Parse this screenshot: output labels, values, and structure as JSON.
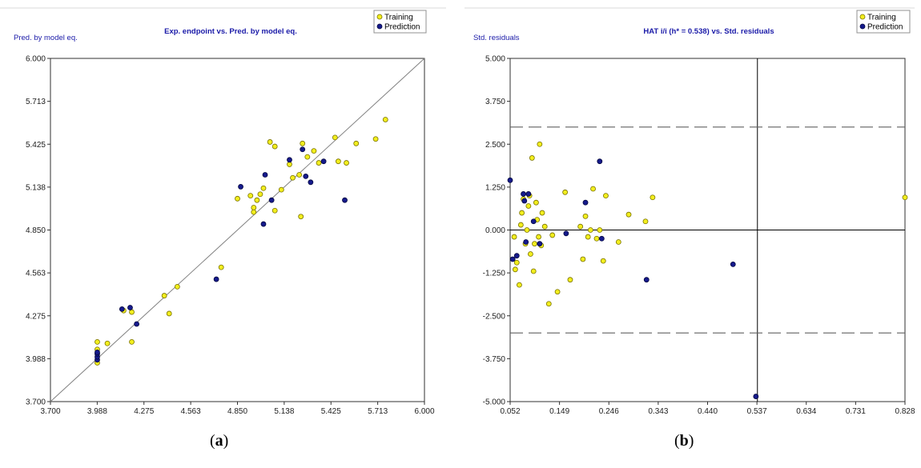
{
  "chart_data": [
    {
      "type": "scatter",
      "panel_label_open": "(",
      "panel_label_letter": "a",
      "panel_label_close": ")",
      "title": "Exp. endpoint vs. Pred. by model eq.",
      "xlabel": "",
      "ylabel": "Pred. by model eq.",
      "xlim": [
        3.7,
        6.0
      ],
      "ylim": [
        3.7,
        6.0
      ],
      "xticks": [
        "3.700",
        "3.988",
        "4.275",
        "4.563",
        "4.850",
        "5.138",
        "5.425",
        "5.713",
        "6.000"
      ],
      "yticks": [
        "3.700",
        "3.988",
        "4.275",
        "4.563",
        "4.850",
        "5.138",
        "5.425",
        "5.713",
        "6.000"
      ],
      "grid": false,
      "legend_position": "top-right",
      "diagonal_line": true,
      "colors": {
        "training": "#f2ee1e",
        "prediction": "#151a8c",
        "title": "#1a1aa8",
        "line": "#808080"
      },
      "series": [
        {
          "name": "Training",
          "points": [
            [
              3.988,
              3.96
            ],
            [
              3.988,
              4.05
            ],
            [
              3.988,
              4.1
            ],
            [
              4.05,
              4.09
            ],
            [
              4.15,
              4.31
            ],
            [
              4.2,
              4.3
            ],
            [
              4.2,
              4.1
            ],
            [
              4.4,
              4.41
            ],
            [
              4.43,
              4.29
            ],
            [
              4.48,
              4.47
            ],
            [
              4.75,
              4.6
            ],
            [
              4.85,
              5.06
            ],
            [
              4.93,
              5.08
            ],
            [
              4.95,
              5.0
            ],
            [
              4.95,
              4.97
            ],
            [
              4.97,
              5.05
            ],
            [
              4.99,
              5.09
            ],
            [
              5.01,
              5.13
            ],
            [
              5.05,
              5.44
            ],
            [
              5.08,
              4.98
            ],
            [
              5.08,
              5.41
            ],
            [
              5.12,
              5.12
            ],
            [
              5.17,
              5.29
            ],
            [
              5.19,
              5.2
            ],
            [
              5.23,
              5.22
            ],
            [
              5.24,
              4.94
            ],
            [
              5.25,
              5.43
            ],
            [
              5.28,
              5.34
            ],
            [
              5.32,
              5.38
            ],
            [
              5.35,
              5.3
            ],
            [
              5.45,
              5.47
            ],
            [
              5.47,
              5.31
            ],
            [
              5.52,
              5.3
            ],
            [
              5.58,
              5.43
            ],
            [
              5.7,
              5.46
            ],
            [
              5.76,
              5.59
            ]
          ]
        },
        {
          "name": "Prediction",
          "points": [
            [
              3.988,
              3.98
            ],
            [
              3.988,
              4.0
            ],
            [
              3.988,
              4.02
            ],
            [
              3.988,
              4.03
            ],
            [
              4.14,
              4.32
            ],
            [
              4.19,
              4.33
            ],
            [
              4.23,
              4.22
            ],
            [
              4.72,
              4.52
            ],
            [
              4.87,
              5.14
            ],
            [
              5.01,
              4.89
            ],
            [
              5.02,
              5.22
            ],
            [
              5.06,
              5.05
            ],
            [
              5.17,
              5.32
            ],
            [
              5.25,
              5.39
            ],
            [
              5.27,
              5.21
            ],
            [
              5.3,
              5.17
            ],
            [
              5.38,
              5.31
            ],
            [
              5.51,
              5.05
            ]
          ]
        }
      ]
    },
    {
      "type": "scatter",
      "panel_label_open": "(",
      "panel_label_letter": "b",
      "panel_label_close": ")",
      "title": "HAT i/i (h* = 0.538) vs. Std. residuals",
      "xlabel": "",
      "ylabel": "Std. residuals",
      "xlim": [
        0.052,
        0.828
      ],
      "ylim": [
        -5.0,
        5.0
      ],
      "xticks": [
        "0.052",
        "0.149",
        "0.246",
        "0.343",
        "0.440",
        "0.537",
        "0.634",
        "0.731",
        "0.828"
      ],
      "yticks": [
        "-5.000",
        "-3.750",
        "-2.500",
        "-1.250",
        "0.000",
        "1.250",
        "2.500",
        "3.750",
        "5.000"
      ],
      "grid": false,
      "legend_position": "top-right",
      "reference_lines": {
        "h_star": 0.538,
        "residual_bounds": [
          -3.0,
          3.0
        ],
        "zero": 0.0
      },
      "colors": {
        "training": "#f2ee1e",
        "prediction": "#151a8c",
        "title": "#1a1aa8",
        "line": "#000000",
        "dashed": "#606060"
      },
      "series": [
        {
          "name": "Training",
          "points": [
            [
              0.06,
              -0.2
            ],
            [
              0.062,
              -1.15
            ],
            [
              0.065,
              -0.95
            ],
            [
              0.07,
              -1.6
            ],
            [
              0.073,
              0.15
            ],
            [
              0.075,
              0.5
            ],
            [
              0.078,
              0.9
            ],
            [
              0.082,
              -0.4
            ],
            [
              0.085,
              0.0
            ],
            [
              0.088,
              0.7
            ],
            [
              0.09,
              1.0
            ],
            [
              0.092,
              -0.7
            ],
            [
              0.095,
              2.1
            ],
            [
              0.098,
              -1.2
            ],
            [
              0.1,
              -0.4
            ],
            [
              0.103,
              0.8
            ],
            [
              0.105,
              0.3
            ],
            [
              0.108,
              -0.2
            ],
            [
              0.11,
              2.5
            ],
            [
              0.113,
              -0.45
            ],
            [
              0.115,
              0.5
            ],
            [
              0.12,
              0.1
            ],
            [
              0.128,
              -2.15
            ],
            [
              0.135,
              -0.15
            ],
            [
              0.145,
              -1.8
            ],
            [
              0.16,
              1.1
            ],
            [
              0.17,
              -1.45
            ],
            [
              0.19,
              0.1
            ],
            [
              0.195,
              -0.85
            ],
            [
              0.2,
              0.4
            ],
            [
              0.205,
              -0.2
            ],
            [
              0.21,
              0.0
            ],
            [
              0.215,
              1.2
            ],
            [
              0.222,
              -0.25
            ],
            [
              0.228,
              0.0
            ],
            [
              0.235,
              -0.9
            ],
            [
              0.24,
              1.0
            ],
            [
              0.265,
              -0.35
            ],
            [
              0.285,
              0.45
            ],
            [
              0.318,
              0.25
            ],
            [
              0.332,
              0.95
            ],
            [
              0.828,
              0.95
            ]
          ]
        },
        {
          "name": "Prediction",
          "points": [
            [
              0.052,
              1.45
            ],
            [
              0.057,
              -0.85
            ],
            [
              0.065,
              -0.75
            ],
            [
              0.078,
              1.05
            ],
            [
              0.08,
              0.85
            ],
            [
              0.083,
              -0.35
            ],
            [
              0.088,
              1.05
            ],
            [
              0.098,
              0.25
            ],
            [
              0.11,
              -0.4
            ],
            [
              0.162,
              -0.1
            ],
            [
              0.2,
              0.8
            ],
            [
              0.228,
              2.0
            ],
            [
              0.232,
              -0.25
            ],
            [
              0.32,
              -1.45
            ],
            [
              0.49,
              -1.0
            ],
            [
              0.535,
              -4.85
            ]
          ]
        }
      ]
    }
  ]
}
